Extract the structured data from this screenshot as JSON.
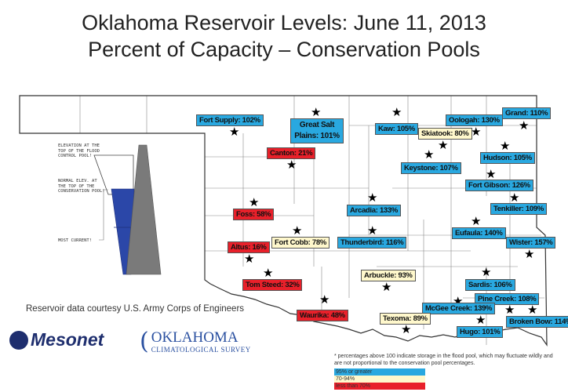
{
  "title": {
    "line1": "Oklahoma Reservoir Levels: June 11, 2013",
    "line2": "Percent of Capacity – Conservation Pools"
  },
  "diagram": {
    "flood_label": "ELEVATION AT THE TOP OF THE FLOOD CONTROL POOL!",
    "conservation_label": "NORMAL ELEV. AT THE TOP OF THE CONSERVATION POOL!",
    "current_label": "MOST CURRENT!"
  },
  "credit": "Reservoir data courtesy U.S. Army Corps of Engineers",
  "logos": {
    "mesonet": "Mesonet",
    "ocs_line1": "OKLAHOMA",
    "ocs_line2": "CLIMATOLOGICAL SURVEY"
  },
  "colors": {
    "high": "#29a8e0",
    "mid": "#fff8cc",
    "low": "#e8202a"
  },
  "reservoirs": [
    {
      "name": "Fort Supply: 102%",
      "level": "high"
    },
    {
      "name": "Great Salt Plains: 101%",
      "level": "high"
    },
    {
      "name": "Kaw: 105%",
      "level": "high"
    },
    {
      "name": "Oologah: 130%",
      "level": "high"
    },
    {
      "name": "Grand: 110%",
      "level": "high"
    },
    {
      "name": "Skiatook: 80%",
      "level": "mid"
    },
    {
      "name": "Canton: 21%",
      "level": "low"
    },
    {
      "name": "Keystone: 107%",
      "level": "high"
    },
    {
      "name": "Hudson: 105%",
      "level": "high"
    },
    {
      "name": "Fort Gibson: 126%",
      "level": "high"
    },
    {
      "name": "Foss: 58%",
      "level": "low"
    },
    {
      "name": "Arcadia: 133%",
      "level": "high"
    },
    {
      "name": "Tenkiller: 109%",
      "level": "high"
    },
    {
      "name": "Fort Cobb: 78%",
      "level": "mid"
    },
    {
      "name": "Thunderbird: 116%",
      "level": "high"
    },
    {
      "name": "Eufaula: 140%",
      "level": "high"
    },
    {
      "name": "Wister: 157%",
      "level": "high"
    },
    {
      "name": "Altus: 16%",
      "level": "low"
    },
    {
      "name": "Tom Steed: 32%",
      "level": "low"
    },
    {
      "name": "Arbuckle: 93%",
      "level": "mid"
    },
    {
      "name": "Sardis: 106%",
      "level": "high"
    },
    {
      "name": "Pine Creek: 108%",
      "level": "high"
    },
    {
      "name": "McGee Creek: 139%",
      "level": "high"
    },
    {
      "name": "Waurika: 48%",
      "level": "low"
    },
    {
      "name": "Texoma: 89%",
      "level": "mid"
    },
    {
      "name": "Hugo: 101%",
      "level": "high"
    },
    {
      "name": "Broken Bow: 114%",
      "level": "high"
    }
  ],
  "footnote": "* percentages above 100 indicate storage in the flood pool, which may fluctuate wildly and are not proportional to the conservation pool percentages.",
  "legend": [
    {
      "label": "95% or greater",
      "color": "#29a8e0"
    },
    {
      "label": "70-94%",
      "color": "#fff8cc"
    },
    {
      "label": "less than 70%",
      "color": "#e8202a"
    }
  ]
}
